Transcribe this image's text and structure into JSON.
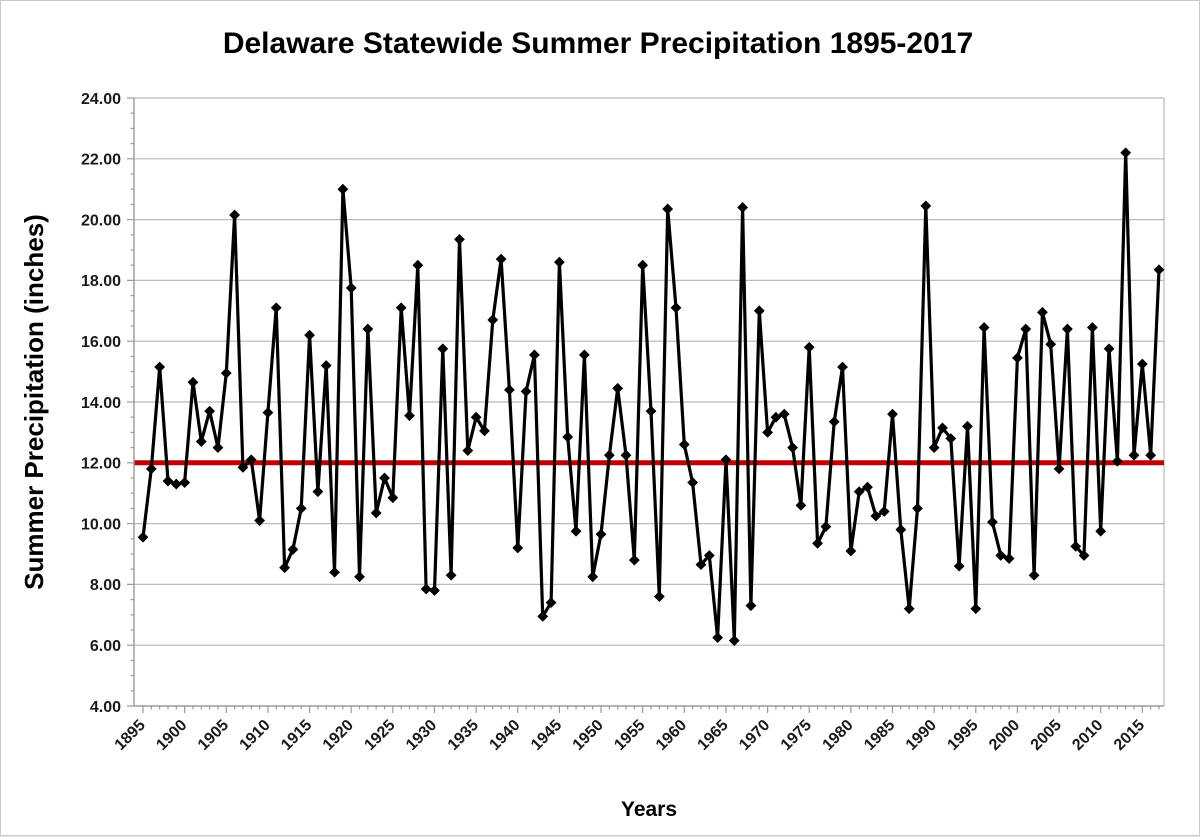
{
  "chart_data": {
    "type": "line",
    "title": "Delaware Statewide Summer Precipitation 1895-2017",
    "xlabel": "Years",
    "ylabel": "Summer Precipitation (inches)",
    "legend": "none",
    "grid": "horizontal",
    "marker": "diamond",
    "ylim": [
      4,
      24
    ],
    "ytick_step": 2,
    "ytick_minor_step": 0.5,
    "ytick_label_format": "2-decimals",
    "xticks": [
      1895,
      1900,
      1905,
      1910,
      1915,
      1920,
      1925,
      1930,
      1935,
      1940,
      1945,
      1950,
      1955,
      1960,
      1965,
      1970,
      1975,
      1980,
      1985,
      1990,
      1995,
      2000,
      2005,
      2010,
      2015
    ],
    "reference_line": {
      "value": 12.0,
      "color": "#c00000"
    },
    "line_color": "#000000",
    "grid_color": "#b9b9b9",
    "axis_color": "#9b9b9b",
    "years": [
      1895,
      1896,
      1897,
      1898,
      1899,
      1900,
      1901,
      1902,
      1903,
      1904,
      1905,
      1906,
      1907,
      1908,
      1909,
      1910,
      1911,
      1912,
      1913,
      1914,
      1915,
      1916,
      1917,
      1918,
      1919,
      1920,
      1921,
      1922,
      1923,
      1924,
      1925,
      1926,
      1927,
      1928,
      1929,
      1930,
      1931,
      1932,
      1933,
      1934,
      1935,
      1936,
      1937,
      1938,
      1939,
      1940,
      1941,
      1942,
      1943,
      1944,
      1945,
      1946,
      1947,
      1948,
      1949,
      1950,
      1951,
      1952,
      1953,
      1954,
      1955,
      1956,
      1957,
      1958,
      1959,
      1960,
      1961,
      1962,
      1963,
      1964,
      1965,
      1966,
      1967,
      1968,
      1969,
      1970,
      1971,
      1972,
      1973,
      1974,
      1975,
      1976,
      1977,
      1978,
      1979,
      1980,
      1981,
      1982,
      1983,
      1984,
      1985,
      1986,
      1987,
      1988,
      1989,
      1990,
      1991,
      1992,
      1993,
      1994,
      1995,
      1996,
      1997,
      1998,
      1999,
      2000,
      2001,
      2002,
      2003,
      2004,
      2005,
      2006,
      2007,
      2008,
      2009,
      2010,
      2011,
      2012,
      2013,
      2014,
      2015,
      2016,
      2017
    ],
    "series": [
      {
        "name": "Summer Precipitation",
        "values": [
          9.55,
          11.8,
          15.15,
          11.4,
          11.3,
          11.35,
          14.65,
          12.7,
          13.7,
          12.5,
          14.95,
          20.15,
          11.85,
          12.1,
          10.1,
          13.65,
          17.1,
          8.55,
          9.15,
          10.5,
          16.2,
          11.05,
          15.2,
          8.4,
          21.0,
          17.75,
          8.25,
          16.4,
          10.35,
          11.5,
          10.85,
          17.1,
          13.55,
          18.5,
          7.85,
          7.8,
          15.75,
          8.3,
          19.35,
          12.4,
          13.5,
          13.05,
          16.7,
          18.7,
          14.4,
          9.2,
          14.35,
          15.55,
          6.95,
          7.4,
          18.6,
          12.85,
          9.75,
          15.55,
          8.25,
          9.65,
          12.25,
          14.45,
          12.25,
          8.8,
          18.5,
          13.7,
          7.6,
          20.35,
          17.1,
          12.6,
          11.35,
          8.65,
          8.95,
          6.25,
          12.1,
          6.15,
          20.4,
          7.3,
          17.0,
          13.0,
          13.5,
          13.6,
          12.5,
          10.6,
          15.8,
          9.35,
          9.9,
          13.35,
          15.15,
          9.1,
          11.05,
          11.2,
          10.25,
          10.4,
          13.6,
          9.8,
          7.2,
          10.5,
          20.45,
          12.5,
          13.15,
          12.8,
          8.6,
          13.2,
          7.2,
          16.45,
          10.05,
          8.95,
          8.85,
          15.45,
          16.4,
          8.3,
          16.95,
          15.9,
          11.8,
          16.4,
          9.25,
          8.95,
          16.45,
          9.75,
          15.75,
          12.05,
          22.2,
          12.25,
          15.25,
          12.25,
          18.35
        ]
      }
    ]
  }
}
